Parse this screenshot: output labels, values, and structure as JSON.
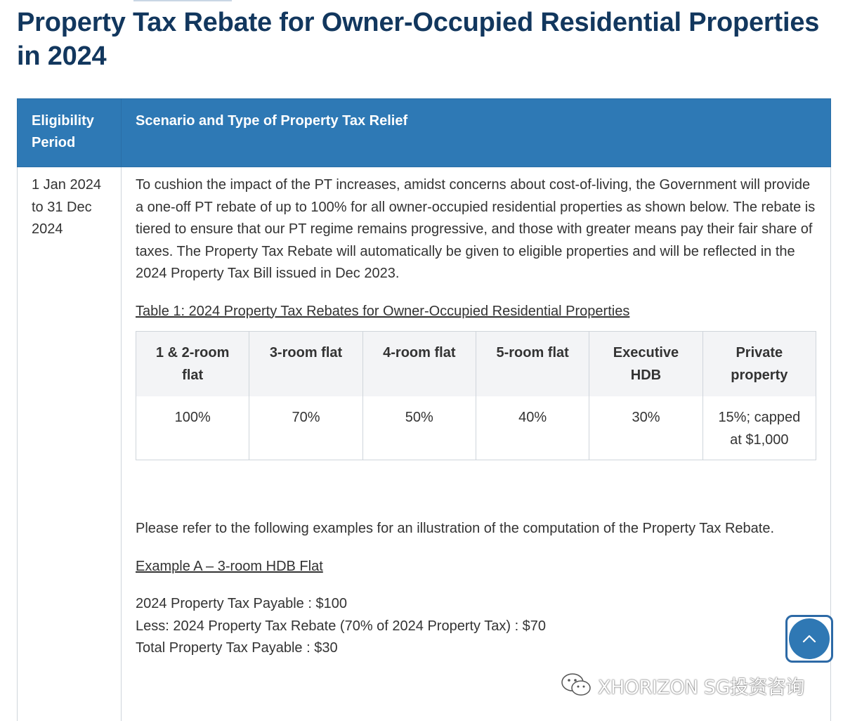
{
  "page_title": "Property Tax Rebate for Owner-Occupied Residential Properties in 2024",
  "main_table": {
    "headers": {
      "period": "Eligibility Period",
      "scenario": "Scenario and Type of Property Tax Relief"
    },
    "row": {
      "period": "1 Jan 2024 to 31 Dec 2024",
      "intro": "To cushion the impact of the PT increases, amidst concerns about cost-of-living, the Government will provide a one-off PT rebate of up to 100% for all owner-occupied residential properties as shown below. The rebate is tiered to ensure that our PT regime remains progressive, and those with greater means pay their fair share of taxes. The Property Tax Rebate will automatically be given to eligible properties and will be reflected in the 2024 Property Tax Bill issued in Dec 2023.",
      "table_caption": "Table 1: 2024 Property Tax Rebates for Owner-Occupied Residential Properties",
      "rebate_table": {
        "headers": [
          "1 & 2-room flat",
          "3-room flat",
          "4-room flat",
          "5-room flat",
          "Executive HDB",
          "Private property"
        ],
        "values": [
          "100%",
          "70%",
          "50%",
          "40%",
          "30%",
          "15%; capped at $1,000"
        ]
      },
      "refer_text": "Please refer to the following examples for an illustration of the computation of the Property Tax Rebate.",
      "example_title": "Example A – 3-room HDB Flat",
      "example_lines": [
        "2024 Property Tax Payable : $100",
        "Less: 2024 Property Tax Rebate (70% of 2024 Property Tax) : $70",
        "Total Property Tax Payable : $30"
      ]
    }
  },
  "back_to_top": {
    "icon": "chevron-up-icon",
    "color": "#2f78b4"
  },
  "watermark": {
    "text": "XHORIZON SG投资咨询",
    "icon": "wechat-icon"
  },
  "colors": {
    "title": "#12375e",
    "header_bg": "#2e79b5",
    "subheader_bg": "#f3f4f6"
  }
}
